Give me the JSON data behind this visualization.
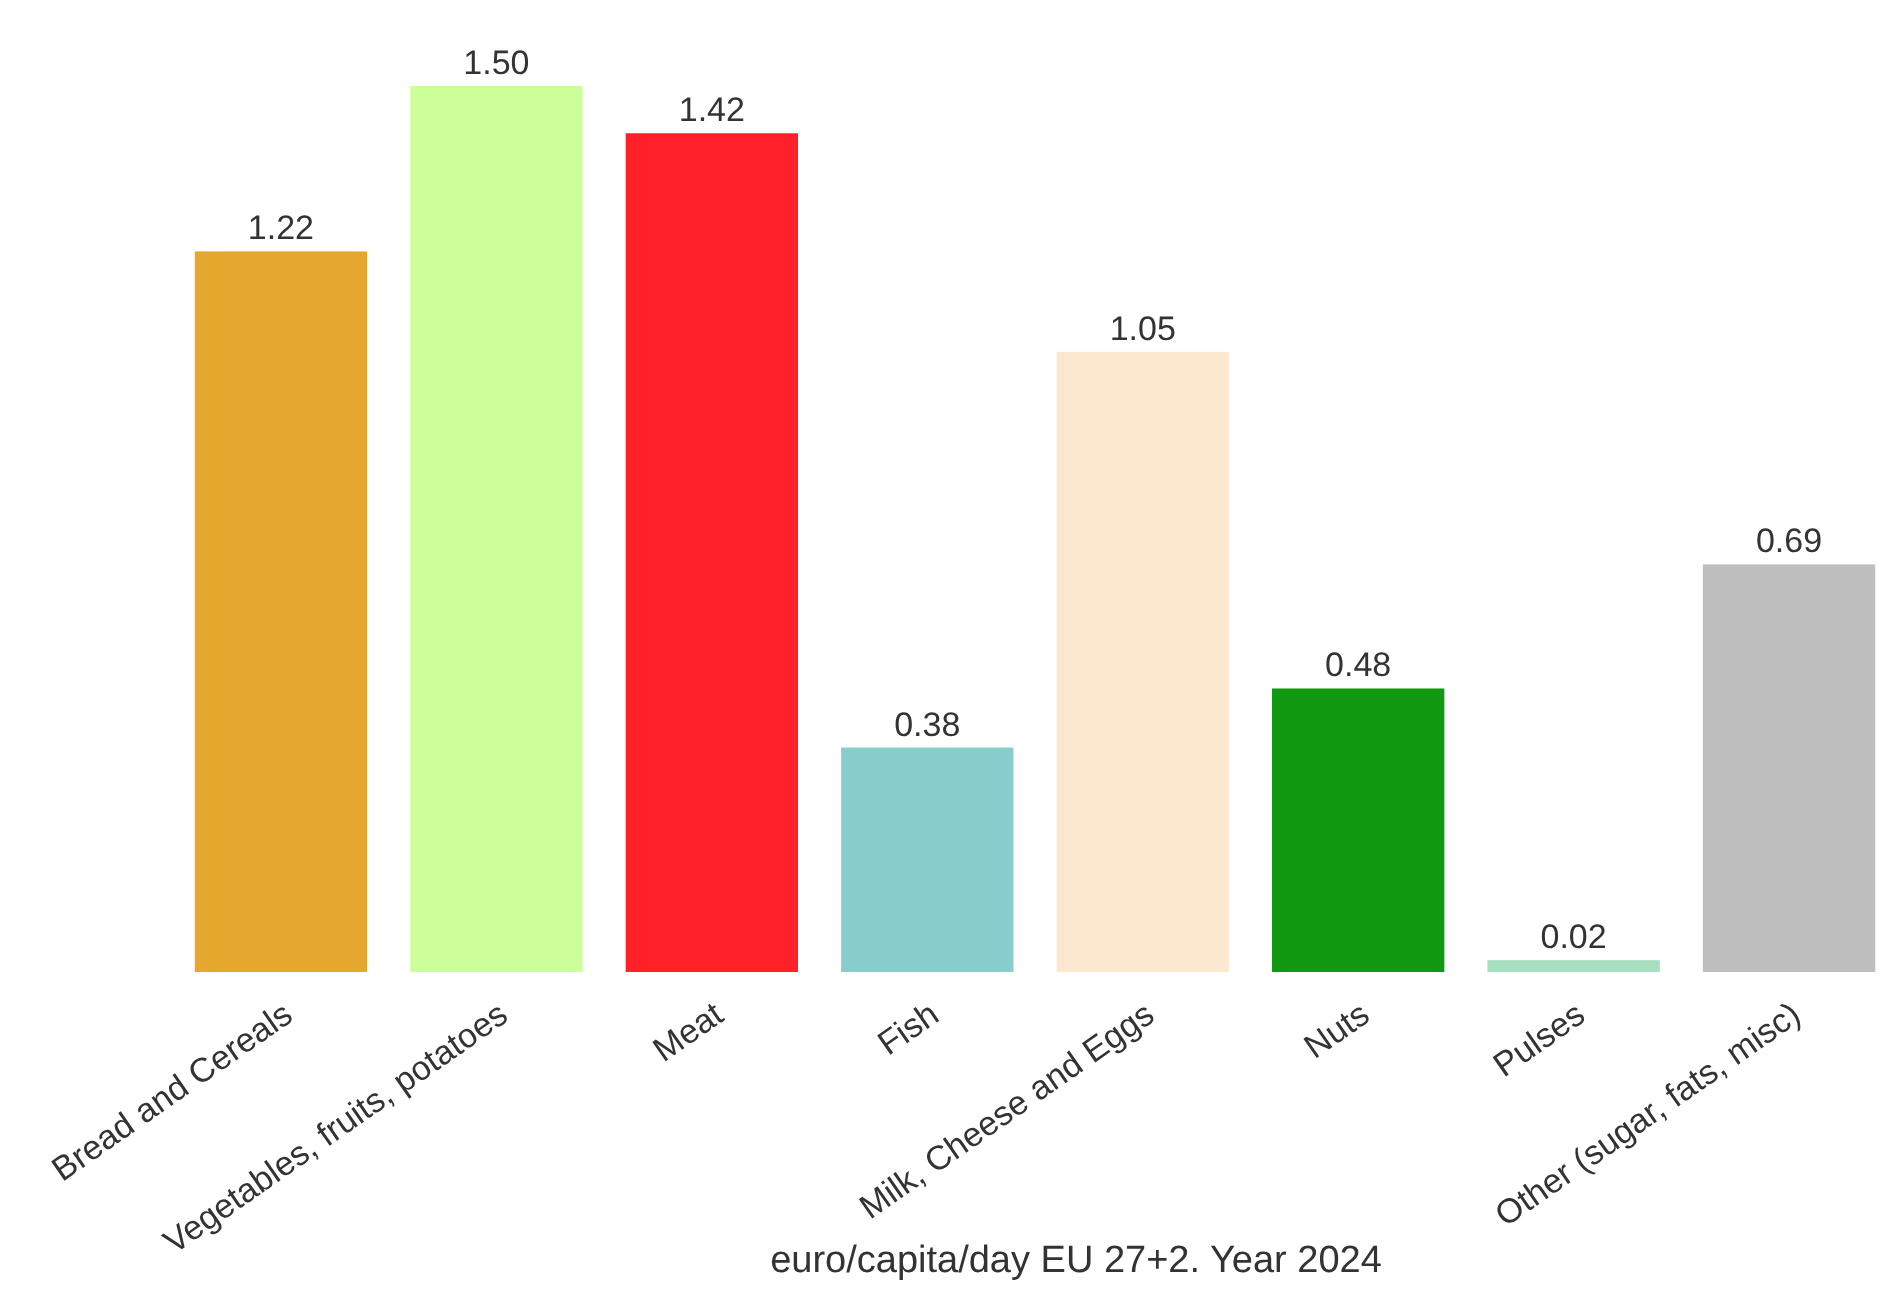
{
  "chart_data": {
    "type": "bar",
    "xlabel": "euro/capita/day EU 27+2. Year 2024",
    "categories": [
      "Bread and Cereals",
      "Vegetables, fruits, potatoes",
      "Meat",
      "Fish",
      "Milk, Cheese and Eggs",
      "Nuts",
      "Pulses",
      "Other (sugar, fats, misc)"
    ],
    "values": [
      1.22,
      1.5,
      1.42,
      0.38,
      1.05,
      0.48,
      0.02,
      0.69
    ],
    "colors": [
      "#e5a82e",
      "#ccff99",
      "#ff2029",
      "#88cccc",
      "#fce8cf",
      "#119911",
      "#a6e0c0",
      "#bebebe"
    ],
    "value_labels": [
      "1.22",
      "1.50",
      "1.42",
      "0.38",
      "1.05",
      "0.48",
      "0.02",
      "0.69"
    ]
  }
}
